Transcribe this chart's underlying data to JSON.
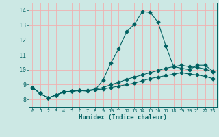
{
  "xlabel": "Humidex (Indice chaleur)",
  "background_color": "#cce8e4",
  "grid_color": "#f0b0b0",
  "line_color": "#006060",
  "xlim": [
    -0.5,
    23.5
  ],
  "ylim": [
    7.5,
    14.5
  ],
  "x_ticks": [
    0,
    1,
    2,
    3,
    4,
    5,
    6,
    7,
    8,
    9,
    10,
    11,
    12,
    13,
    14,
    15,
    16,
    17,
    18,
    19,
    20,
    21,
    22,
    23
  ],
  "y_ticks": [
    8,
    9,
    10,
    11,
    12,
    13,
    14
  ],
  "series1_y": [
    8.8,
    8.4,
    8.1,
    8.3,
    8.5,
    8.55,
    8.6,
    8.55,
    8.65,
    9.3,
    10.45,
    11.4,
    12.55,
    13.05,
    13.9,
    13.85,
    13.2,
    11.6,
    10.2,
    10.1,
    10.0,
    10.3,
    10.3,
    9.9
  ],
  "series2_y": [
    8.8,
    8.4,
    8.1,
    8.3,
    8.5,
    8.55,
    8.6,
    8.6,
    8.7,
    8.8,
    9.0,
    9.15,
    9.35,
    9.5,
    9.65,
    9.8,
    9.95,
    10.1,
    10.2,
    10.3,
    10.2,
    10.15,
    10.05,
    9.85
  ],
  "series3_y": [
    8.8,
    8.4,
    8.1,
    8.3,
    8.5,
    8.55,
    8.6,
    8.6,
    8.65,
    8.7,
    8.8,
    8.9,
    9.0,
    9.1,
    9.25,
    9.4,
    9.5,
    9.6,
    9.7,
    9.8,
    9.7,
    9.65,
    9.55,
    9.4
  ]
}
